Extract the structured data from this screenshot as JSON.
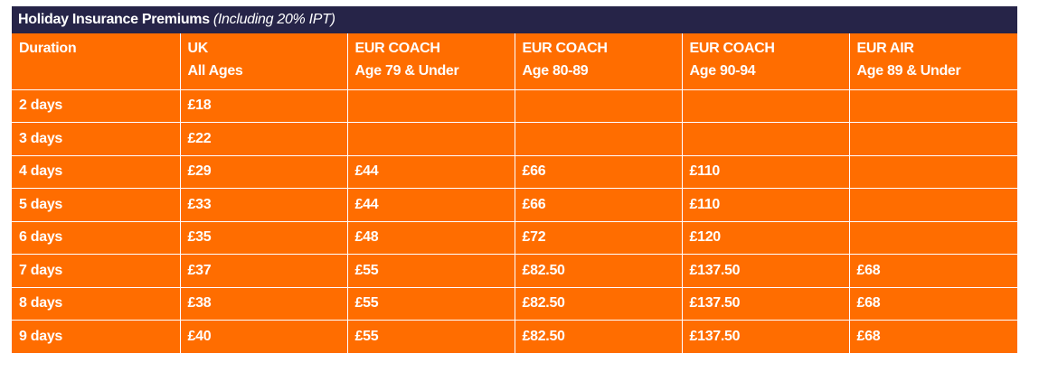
{
  "title": {
    "main": "Holiday Insurance Premiums",
    "sub": "(Including 20% IPT)"
  },
  "table": {
    "headers": [
      [
        "Duration"
      ],
      [
        "UK",
        "All Ages"
      ],
      [
        "EUR COACH",
        "Age 79 & Under"
      ],
      [
        "EUR COACH",
        "Age 80-89"
      ],
      [
        "EUR COACH",
        "Age 90-94"
      ],
      [
        "EUR AIR",
        "Age 89 & Under"
      ]
    ],
    "rows": [
      [
        "2 days",
        "£18",
        "",
        "",
        "",
        ""
      ],
      [
        "3 days",
        "£22",
        "",
        "",
        "",
        ""
      ],
      [
        "4 days",
        "£29",
        "£44",
        "£66",
        "£110",
        ""
      ],
      [
        "5 days",
        "£33",
        "£44",
        "£66",
        "£110",
        ""
      ],
      [
        "6 days",
        "£35",
        "£48",
        "£72",
        "£120",
        ""
      ],
      [
        "7 days",
        "£37",
        "£55",
        "£82.50",
        "£137.50",
        "£68"
      ],
      [
        "8 days",
        "£38",
        "£55",
        "£82.50",
        "£137.50",
        "£68"
      ],
      [
        "9 days",
        "£40",
        "£55",
        "£82.50",
        "£137.50",
        "£68"
      ]
    ]
  },
  "colors": {
    "title_bg": "#262448",
    "table_bg": "#ff6d00",
    "text": "#ffffff",
    "grid": "#ffffff"
  }
}
